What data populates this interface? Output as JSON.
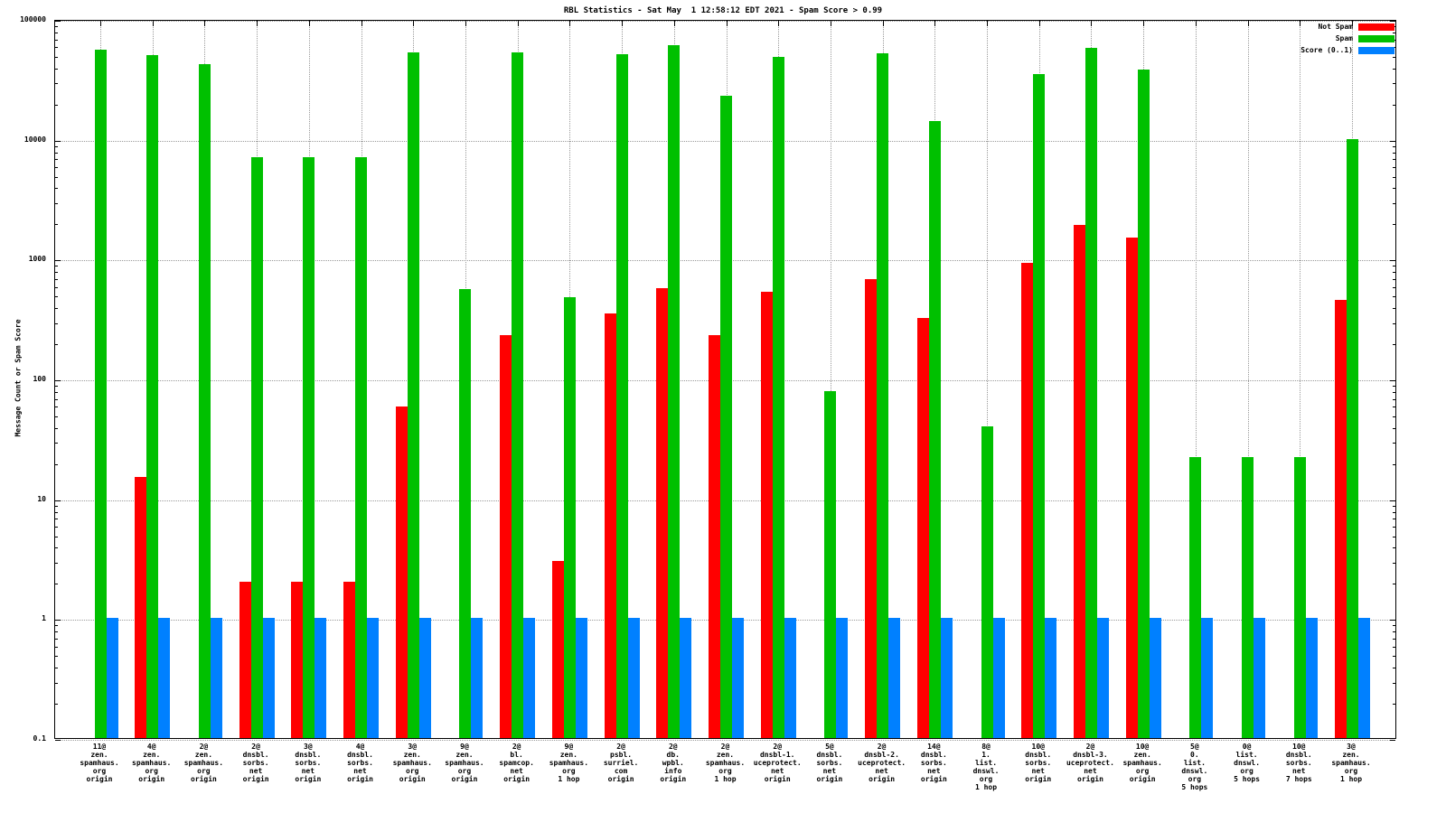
{
  "title": "RBL Statistics - Sat May  1 12:58:12 EDT 2021 - Spam Score > 0.99",
  "ylabel": "Message Count or Spam Score",
  "chart_data": {
    "type": "bar",
    "y_scale": "log",
    "grid": true,
    "legend_position": "top-right",
    "ylim": [
      0.1,
      100000
    ],
    "yticks": [
      0.1,
      1,
      10,
      100,
      1000,
      10000,
      100000
    ],
    "ytick_labels": [
      "0.1",
      "1",
      "10",
      "100",
      "1000",
      "10000",
      "100000"
    ],
    "categories": [
      [
        "11@",
        "zen.",
        "spamhaus.",
        "org",
        "origin"
      ],
      [
        "4@",
        "zen.",
        "spamhaus.",
        "org",
        "origin"
      ],
      [
        "2@",
        "zen.",
        "spamhaus.",
        "org",
        "origin"
      ],
      [
        "2@",
        "dnsbl.",
        "sorbs.",
        "net",
        "origin"
      ],
      [
        "3@",
        "dnsbl.",
        "sorbs.",
        "net",
        "origin"
      ],
      [
        "4@",
        "dnsbl.",
        "sorbs.",
        "net",
        "origin"
      ],
      [
        "3@",
        "zen.",
        "spamhaus.",
        "org",
        "origin"
      ],
      [
        "9@",
        "zen.",
        "spamhaus.",
        "org",
        "origin"
      ],
      [
        "2@",
        "bl.",
        "spamcop.",
        "net",
        "origin"
      ],
      [
        "9@",
        "zen.",
        "spamhaus.",
        "org",
        "1 hop"
      ],
      [
        "2@",
        "psbl.",
        "surriel.",
        "com",
        "origin"
      ],
      [
        "2@",
        "db.",
        "wpbl.",
        "info",
        "origin"
      ],
      [
        "2@",
        "zen.",
        "spamhaus.",
        "org",
        "1 hop"
      ],
      [
        "2@",
        "dnsbl-1.",
        "uceprotect.",
        "net",
        "origin"
      ],
      [
        "5@",
        "dnsbl.",
        "sorbs.",
        "net",
        "origin"
      ],
      [
        "2@",
        "dnsbl-2.",
        "uceprotect.",
        "net",
        "origin"
      ],
      [
        "14@",
        "dnsbl.",
        "sorbs.",
        "net",
        "origin"
      ],
      [
        "8@",
        "1.",
        "list.",
        "dnswl.",
        "org",
        "1 hop"
      ],
      [
        "10@",
        "dnsbl.",
        "sorbs.",
        "net",
        "origin"
      ],
      [
        "2@",
        "dnsbl-3.",
        "uceprotect.",
        "net",
        "origin"
      ],
      [
        "10@",
        "zen.",
        "spamhaus.",
        "org",
        "origin"
      ],
      [
        "5@",
        "0.",
        "list.",
        "dnswl.",
        "org",
        "5 hops"
      ],
      [
        "0@",
        "list.",
        "dnswl.",
        "org",
        "5 hops"
      ],
      [
        "10@",
        "dnsbl.",
        "sorbs.",
        "net",
        "7 hops"
      ],
      [
        "3@",
        "zen.",
        "spamhaus.",
        "org",
        "1 hop"
      ]
    ],
    "series": [
      {
        "name": "Not Spam",
        "color": "#ff0000",
        "values": [
          null,
          15,
          null,
          2,
          2,
          2,
          58,
          null,
          230,
          3,
          350,
          570,
          230,
          530,
          null,
          670,
          320,
          null,
          930,
          1900,
          1500,
          null,
          null,
          null,
          450
        ]
      },
      {
        "name": "Spam",
        "color": "#00c000",
        "values": [
          55000,
          50000,
          42000,
          7000,
          7000,
          7000,
          53000,
          560,
          53000,
          480,
          51000,
          60000,
          23000,
          48000,
          78,
          52000,
          14000,
          40,
          35000,
          57000,
          38000,
          22,
          22,
          22,
          10000
        ]
      },
      {
        "name": "Score (0..1)",
        "color": "#0080ff",
        "values": [
          1,
          1,
          1,
          1,
          1,
          1,
          1,
          1,
          1,
          1,
          1,
          1,
          1,
          1,
          1,
          1,
          1,
          1,
          1,
          1,
          1,
          1,
          1,
          1,
          1
        ]
      }
    ]
  }
}
